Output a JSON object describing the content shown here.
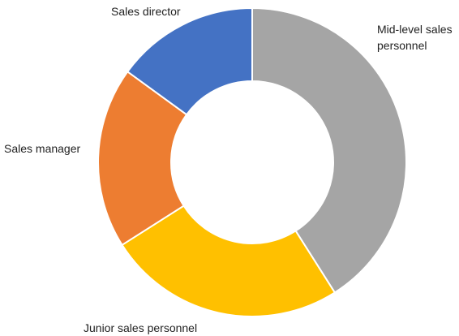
{
  "chart_data": {
    "type": "donut",
    "categories": [
      "Mid-level sales personnel",
      "Junior sales personnel",
      "Sales manager",
      "Sales director"
    ],
    "values": [
      41,
      25,
      19,
      15
    ],
    "colors": [
      "#a5a5a5",
      "#ffc000",
      "#ed7d31",
      "#4472c4"
    ]
  }
}
